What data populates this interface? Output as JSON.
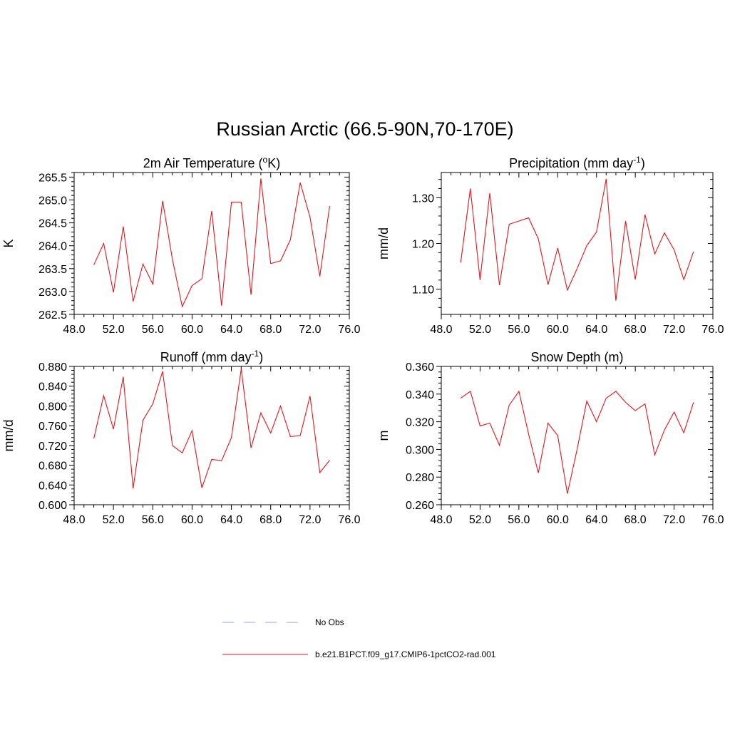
{
  "title": "Russian Arctic (66.5-90N,70-170E)",
  "legend": {
    "items": [
      {
        "label": "No Obs",
        "color": "#9aa0e8",
        "dashed": true
      },
      {
        "label": "b.e21.B1PCT.f09_g17.CMIP6-1pctCO2-rad.001",
        "color": "#e8141c",
        "dashed": false
      }
    ]
  },
  "chart_data": [
    {
      "type": "line",
      "title": "2m Air Temperature (",
      "title_sup": "o",
      "title_post": "K)",
      "ylabel": "K",
      "xlim": [
        48,
        76
      ],
      "ylim": [
        262.5,
        265.6
      ],
      "xticks": [
        48,
        52,
        56,
        60,
        64,
        68,
        72,
        76
      ],
      "xtick_labels": [
        "48.0",
        "52.0",
        "56.0",
        "60.0",
        "64.0",
        "68.0",
        "72.0",
        "76.0"
      ],
      "yticks": [
        262.5,
        263.0,
        263.5,
        264.0,
        264.5,
        265.0,
        265.5
      ],
      "ytick_labels": [
        "262.5",
        "263.0",
        "263.5",
        "264.0",
        "264.5",
        "265.0",
        "265.5"
      ],
      "x": [
        50,
        51,
        52,
        53,
        54,
        55,
        56,
        57,
        58,
        59,
        60,
        61,
        62,
        63,
        64,
        65,
        66,
        67,
        68,
        69,
        70,
        71,
        72,
        73,
        74
      ],
      "series": [
        {
          "values": [
            263.58,
            264.05,
            262.98,
            264.42,
            262.78,
            263.6,
            263.16,
            264.98,
            263.7,
            262.67,
            263.13,
            263.28,
            264.76,
            262.69,
            264.95,
            264.95,
            262.93,
            265.47,
            263.61,
            263.67,
            264.13,
            265.38,
            264.62,
            263.33,
            264.87
          ]
        }
      ]
    },
    {
      "type": "line",
      "title": "Precipitation (mm day",
      "title_sup": "-1",
      "title_post": ")",
      "ylabel": "mm/d",
      "xlim": [
        48,
        76
      ],
      "ylim": [
        1.045,
        1.355
      ],
      "xticks": [
        48,
        52,
        56,
        60,
        64,
        68,
        72,
        76
      ],
      "xtick_labels": [
        "48.0",
        "52.0",
        "56.0",
        "60.0",
        "64.0",
        "68.0",
        "72.0",
        "76.0"
      ],
      "yticks": [
        1.1,
        1.2,
        1.3
      ],
      "ytick_labels": [
        "1.10",
        "1.20",
        "1.30"
      ],
      "x": [
        50,
        51,
        52,
        53,
        54,
        55,
        56,
        57,
        58,
        59,
        60,
        61,
        62,
        63,
        64,
        65,
        66,
        67,
        68,
        69,
        70,
        71,
        72,
        73,
        74
      ],
      "series": [
        {
          "values": [
            1.158,
            1.32,
            1.12,
            1.31,
            1.109,
            1.242,
            1.249,
            1.256,
            1.21,
            1.11,
            1.19,
            1.098,
            1.145,
            1.195,
            1.225,
            1.341,
            1.075,
            1.249,
            1.121,
            1.263,
            1.177,
            1.223,
            1.186,
            1.121,
            1.182
          ]
        }
      ]
    },
    {
      "type": "line",
      "title": "Runoff (mm day",
      "title_sup": "-1",
      "title_post": ")",
      "ylabel": "mm/d",
      "xlim": [
        48,
        76
      ],
      "ylim": [
        0.6,
        0.88
      ],
      "xticks": [
        48,
        52,
        56,
        60,
        64,
        68,
        72,
        76
      ],
      "xtick_labels": [
        "48.0",
        "52.0",
        "56.0",
        "60.0",
        "64.0",
        "68.0",
        "72.0",
        "76.0"
      ],
      "yticks": [
        0.6,
        0.64,
        0.68,
        0.72,
        0.76,
        0.8,
        0.84,
        0.88
      ],
      "ytick_labels": [
        "0.600",
        "0.640",
        "0.680",
        "0.720",
        "0.760",
        "0.800",
        "0.840",
        "0.880"
      ],
      "x": [
        50,
        51,
        52,
        53,
        54,
        55,
        56,
        57,
        58,
        59,
        60,
        61,
        62,
        63,
        64,
        65,
        66,
        67,
        68,
        69,
        70,
        71,
        72,
        73,
        74
      ],
      "series": [
        {
          "values": [
            0.734,
            0.821,
            0.753,
            0.859,
            0.633,
            0.771,
            0.804,
            0.87,
            0.72,
            0.705,
            0.75,
            0.634,
            0.692,
            0.689,
            0.736,
            0.875,
            0.715,
            0.786,
            0.745,
            0.8,
            0.738,
            0.74,
            0.82,
            0.665,
            0.69
          ]
        }
      ]
    },
    {
      "type": "line",
      "title": "Snow Depth (m)",
      "title_sup": "",
      "title_post": "",
      "ylabel": "m",
      "xlim": [
        48,
        76
      ],
      "ylim": [
        0.26,
        0.36
      ],
      "xticks": [
        48,
        52,
        56,
        60,
        64,
        68,
        72,
        76
      ],
      "xtick_labels": [
        "48.0",
        "52.0",
        "56.0",
        "60.0",
        "64.0",
        "68.0",
        "72.0",
        "76.0"
      ],
      "yticks": [
        0.26,
        0.28,
        0.3,
        0.32,
        0.34,
        0.36
      ],
      "ytick_labels": [
        "0.260",
        "0.280",
        "0.300",
        "0.320",
        "0.340",
        "0.360"
      ],
      "x": [
        50,
        51,
        52,
        53,
        54,
        55,
        56,
        57,
        58,
        59,
        60,
        61,
        62,
        63,
        64,
        65,
        66,
        67,
        68,
        69,
        70,
        71,
        72,
        73,
        74
      ],
      "series": [
        {
          "values": [
            0.337,
            0.342,
            0.317,
            0.319,
            0.303,
            0.332,
            0.342,
            0.311,
            0.283,
            0.319,
            0.31,
            0.268,
            0.3,
            0.335,
            0.32,
            0.337,
            0.342,
            0.334,
            0.328,
            0.333,
            0.296,
            0.314,
            0.327,
            0.312,
            0.334
          ]
        }
      ]
    }
  ]
}
